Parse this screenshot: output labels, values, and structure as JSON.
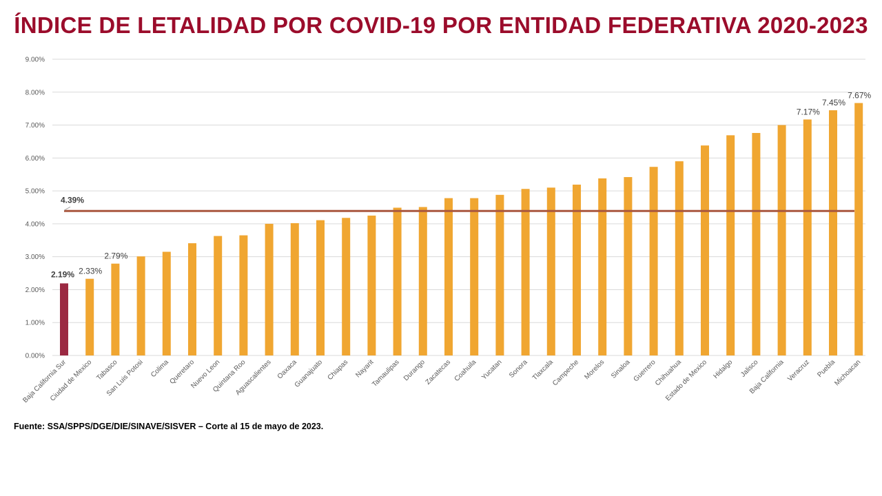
{
  "title": "ÍNDICE DE LETALIDAD POR COVID-19 POR ENTIDAD FEDERATIVA 2020-2023",
  "source": "Fuente: SSA/SPPS/DGE/DIE/SINAVE/SISVER  – Corte al 15 de mayo de 2023.",
  "colors": {
    "title": "#9b0c2b",
    "bar": "#f0a631",
    "highlight_bar": "#9b2942",
    "average_line": "#a9573e",
    "grid": "#d9d9d9"
  },
  "chart_data": {
    "type": "bar",
    "categories": [
      "Baja California Sur",
      "Ciudad de Mexico",
      "Tabasco",
      "San Luis Potosi",
      "Colima",
      "Queretaro",
      "Nuevo Leon",
      "Quintana Roo",
      "Aguascalientes",
      "Oaxaca",
      "Guanajuato",
      "Chiapas",
      "Nayarit",
      "Tamaulipas",
      "Durango",
      "Zacatecas",
      "Coahuila",
      "Yucatan",
      "Sonora",
      "Tlaxcala",
      "Campeche",
      "Morelos",
      "Sinaloa",
      "Guerrero",
      "Chihuahua",
      "Estado de Mexico",
      "Hidalgo",
      "Jalisco",
      "Baja California",
      "Veracruz",
      "Puebla",
      "Michoacan"
    ],
    "values": [
      2.19,
      2.33,
      2.79,
      3.01,
      3.15,
      3.41,
      3.63,
      3.65,
      4.0,
      4.02,
      4.11,
      4.18,
      4.25,
      4.49,
      4.51,
      4.78,
      4.78,
      4.88,
      5.06,
      5.1,
      5.19,
      5.38,
      5.42,
      5.73,
      5.9,
      6.38,
      6.69,
      6.76,
      7.0,
      7.17,
      7.45,
      7.67
    ],
    "highlight_category": "Baja California Sur",
    "average": 4.39,
    "average_label": "4.39%",
    "data_labels": [
      {
        "category": "Baja California Sur",
        "text": "2.19%",
        "bold": true
      },
      {
        "category": "Ciudad de Mexico",
        "text": "2.33%",
        "bold": false
      },
      {
        "category": "Tabasco",
        "text": "2.79%",
        "bold": false
      },
      {
        "category": "Veracruz",
        "text": "7.17%",
        "bold": false
      },
      {
        "category": "Puebla",
        "text": "7.45%",
        "bold": false
      },
      {
        "category": "Michoacan",
        "text": "7.67%",
        "bold": false
      }
    ],
    "y_ticks": [
      "0.00%",
      "1.00%",
      "2.00%",
      "3.00%",
      "4.00%",
      "5.00%",
      "6.00%",
      "7.00%",
      "8.00%",
      "9.00%"
    ],
    "ylim": [
      0,
      9
    ],
    "grid": true,
    "xlabel": "",
    "ylabel": ""
  }
}
